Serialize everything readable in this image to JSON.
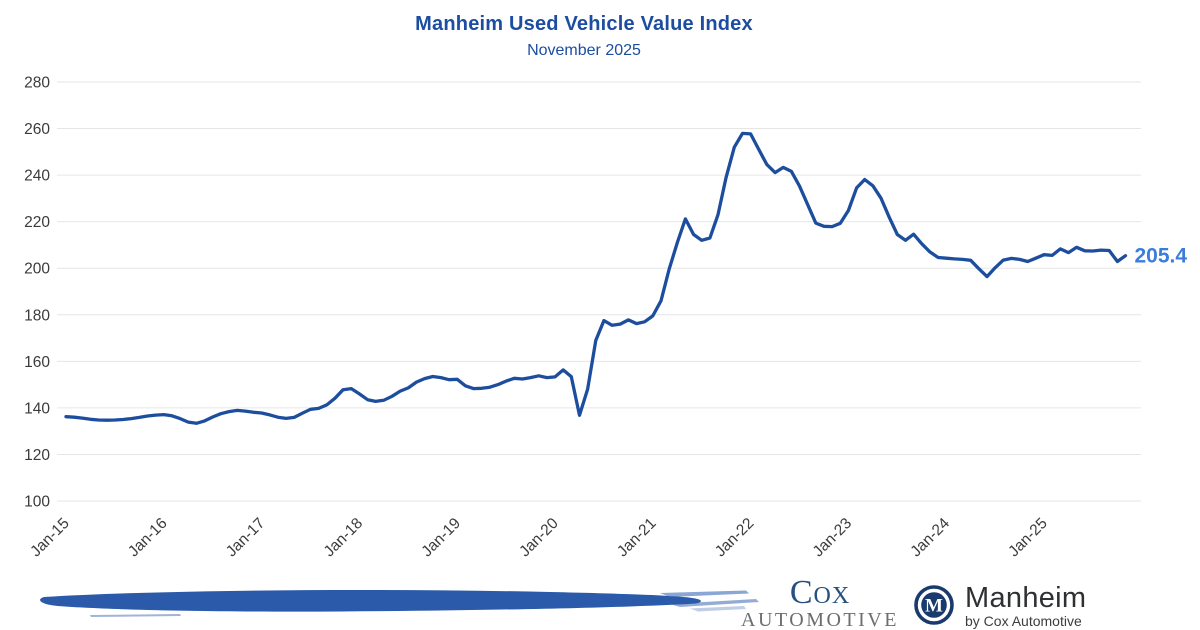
{
  "header": {
    "title": "Manheim Used Vehicle Value Index",
    "subtitle": "November 2025"
  },
  "chart_data": {
    "type": "line",
    "title": "Manheim Used Vehicle Value Index",
    "subtitle": "November 2025",
    "frequency": "monthly",
    "x_start": "Jan-2015",
    "x_end": "Nov-2025",
    "x_tick_labels": [
      "Jan-15",
      "Jan-16",
      "Jan-17",
      "Jan-18",
      "Jan-19",
      "Jan-20",
      "Jan-21",
      "Jan-22",
      "Jan-23",
      "Jan-24",
      "Jan-25"
    ],
    "y_ticks": [
      100,
      120,
      140,
      160,
      180,
      200,
      220,
      240,
      260,
      280
    ],
    "ylim": [
      100,
      280
    ],
    "grid": "horizontal",
    "legend": "none",
    "line_color": "#1d4e9e",
    "grid_color": "#e6e6e6",
    "tick_color": "#3b3b3b",
    "end_label": {
      "text": "205.4",
      "color": "#3c7ddb"
    },
    "series": [
      {
        "name": "Manheim Used Vehicle Value Index",
        "values": [
          136.2,
          136.0,
          135.6,
          135.1,
          134.8,
          134.7,
          134.8,
          135.0,
          135.4,
          135.9,
          136.5,
          136.9,
          137.1,
          136.6,
          135.4,
          133.9,
          133.4,
          134.4,
          136.1,
          137.5,
          138.4,
          138.9,
          138.6,
          138.1,
          137.8,
          137.0,
          136.0,
          135.5,
          135.9,
          137.7,
          139.4,
          139.8,
          141.3,
          144.1,
          147.8,
          148.3,
          146.0,
          143.5,
          142.8,
          143.3,
          145.0,
          147.2,
          148.6,
          151.1,
          152.6,
          153.5,
          153.0,
          152.1,
          152.3,
          149.5,
          148.3,
          148.4,
          148.9,
          150.0,
          151.5,
          152.7,
          152.4,
          153.0,
          153.8,
          153.0,
          153.3,
          156.3,
          153.4,
          136.8,
          148.0,
          169.0,
          177.5,
          175.5,
          176.0,
          177.8,
          176.2,
          177.0,
          179.5,
          186.0,
          199.5,
          211.0,
          221.2,
          214.5,
          212.0,
          213.0,
          223.0,
          239.0,
          252.0,
          257.9,
          257.7,
          251.0,
          244.5,
          241.1,
          243.3,
          241.6,
          235.3,
          227.4,
          219.4,
          218.0,
          217.9,
          219.3,
          224.8,
          234.5,
          238.1,
          235.4,
          230.1,
          221.9,
          214.5,
          212.0,
          214.6,
          210.5,
          207.0,
          204.6,
          204.3,
          204.0,
          203.8,
          203.4,
          199.8,
          196.4,
          200.2,
          203.5,
          204.2,
          203.8,
          202.9,
          204.3,
          205.8,
          205.5,
          208.3,
          206.7,
          209.0,
          207.5,
          207.4,
          207.8,
          207.6,
          202.9,
          205.4
        ]
      }
    ]
  },
  "footer": {
    "cox_logo": {
      "line1": "Cox",
      "line2": "Automotive"
    },
    "manheim_logo": {
      "monogram": "M",
      "name": "Manheim",
      "tagline": "by Cox Automotive"
    }
  },
  "colors": {
    "title_blue": "#1c4da1",
    "line_blue": "#1d4e9e",
    "value_blue": "#3c7ddb",
    "brush_blue": "#2a5aa9",
    "cox_navy": "#26517f",
    "cox_gray": "#6b6d70",
    "manheim_navy": "#1a3a6e"
  }
}
